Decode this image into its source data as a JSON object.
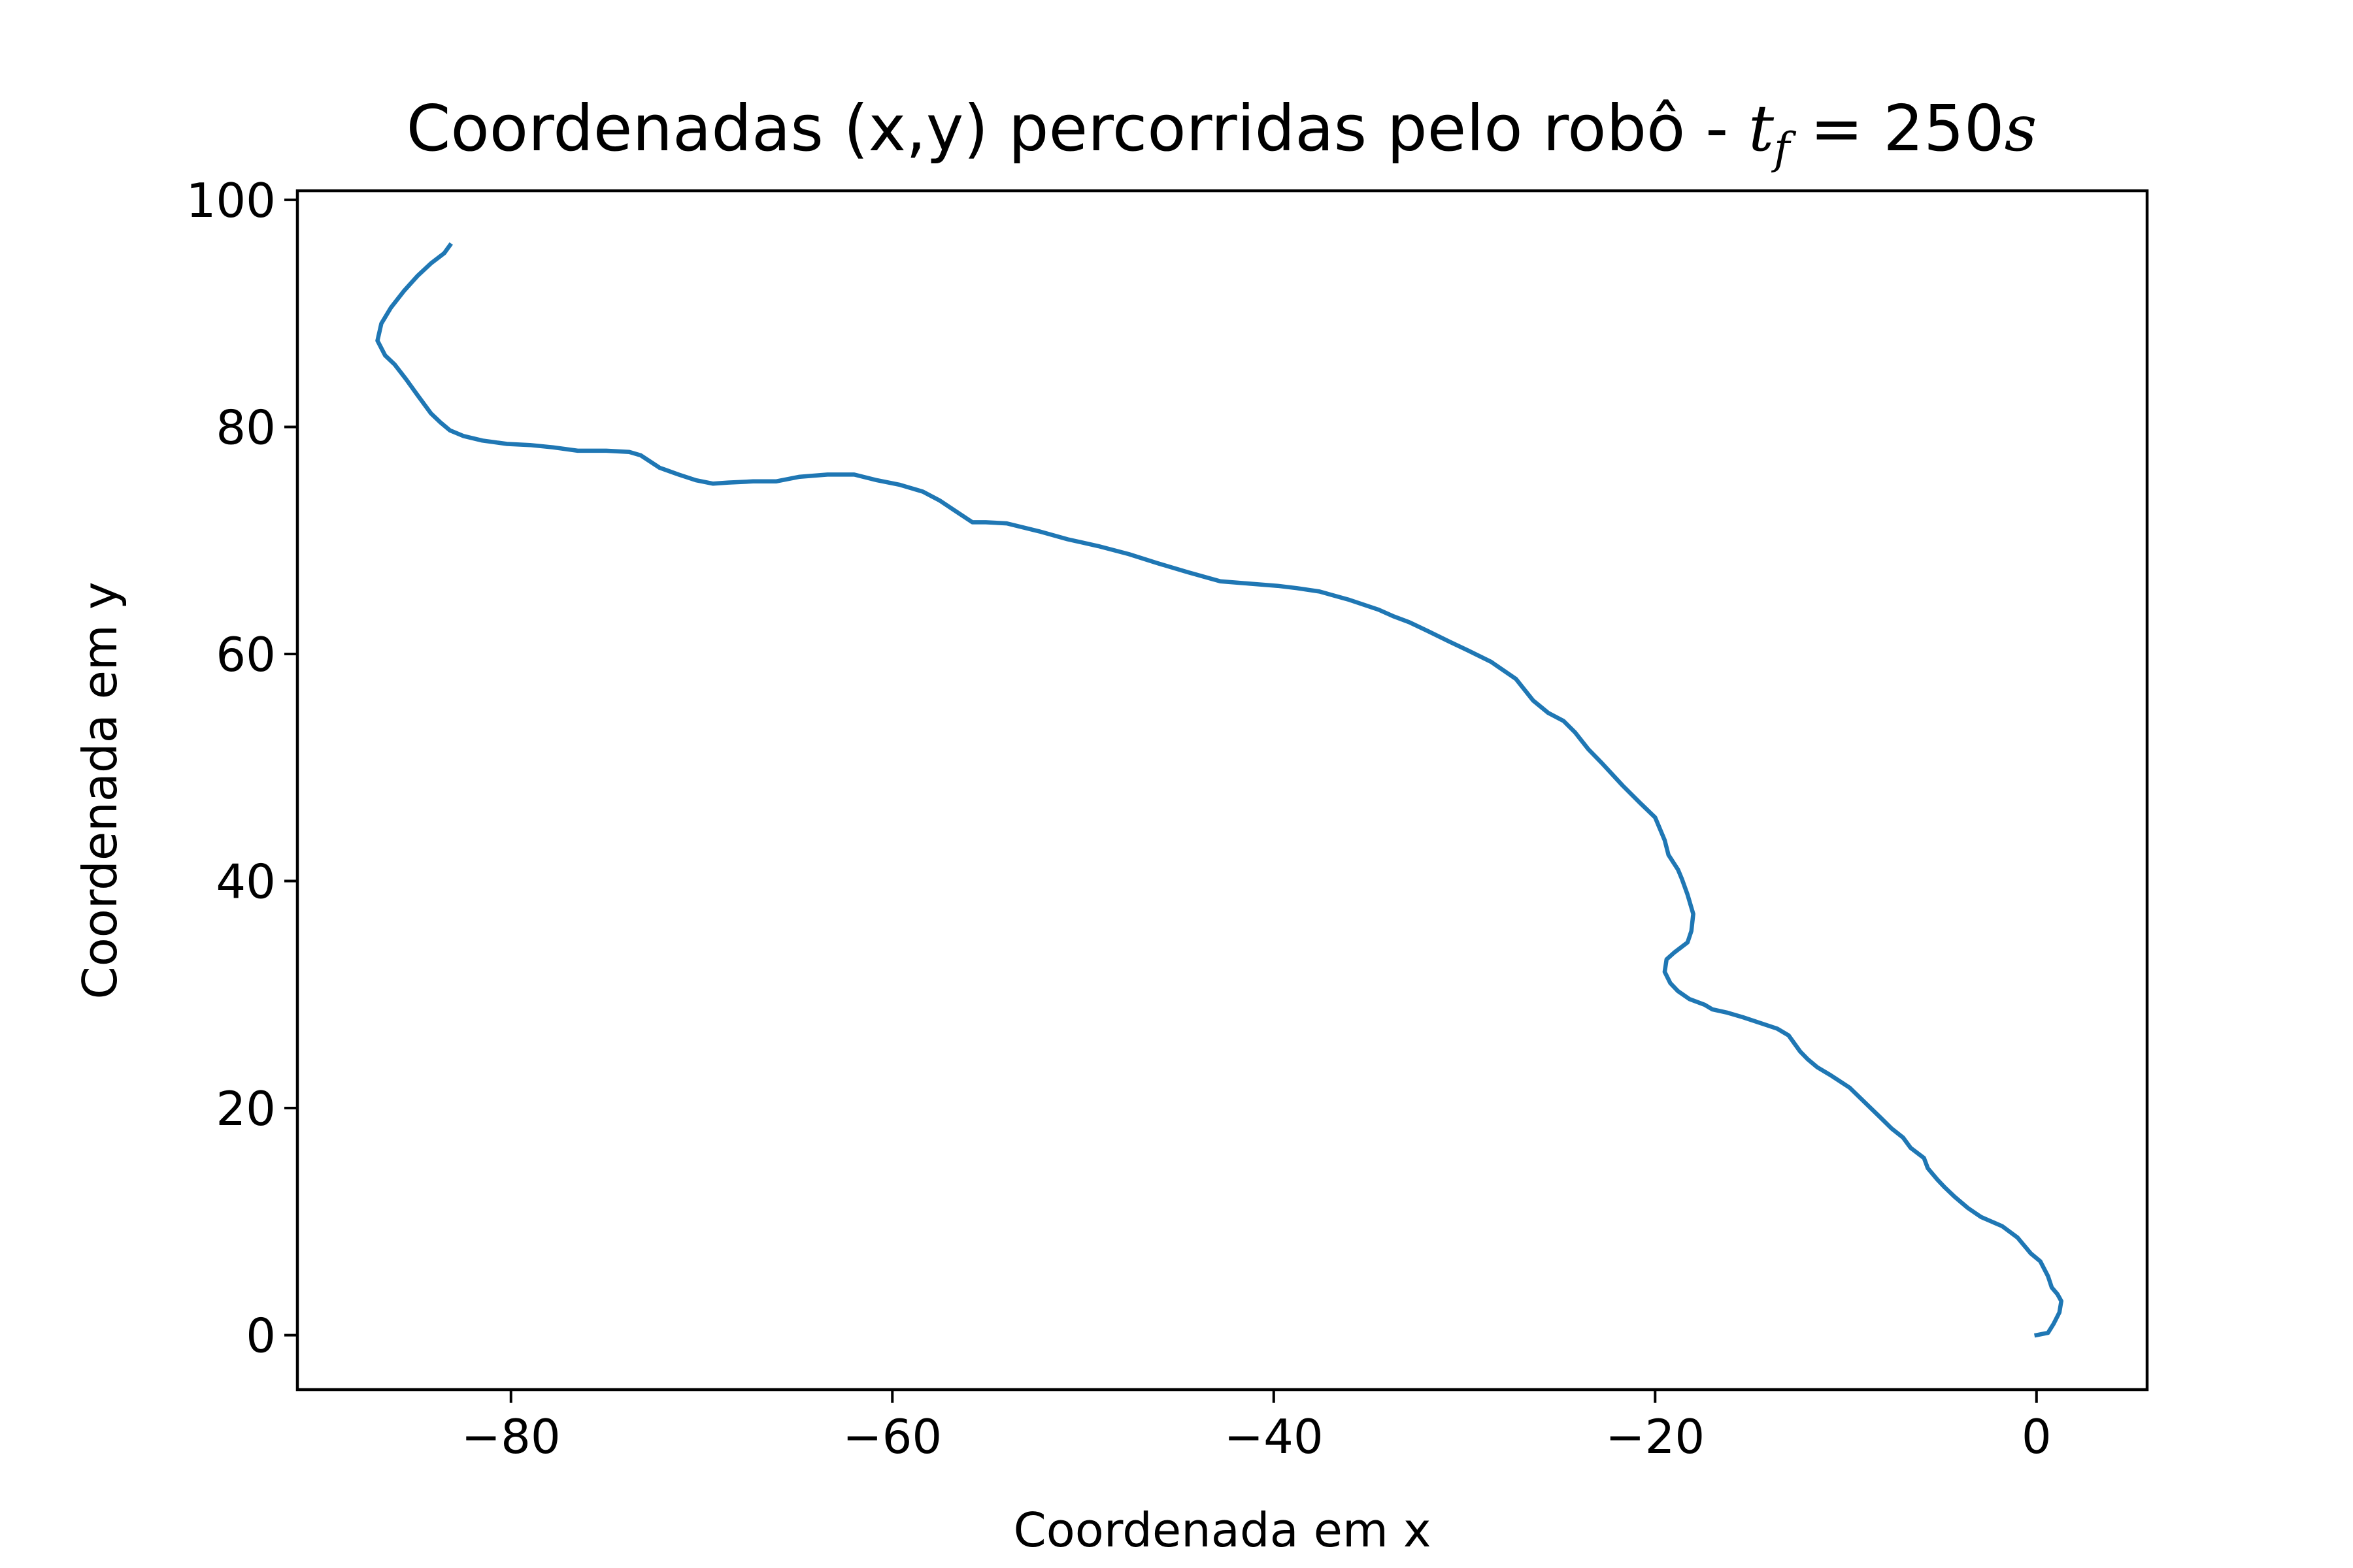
{
  "chart_data": {
    "type": "line",
    "title": "Coordenadas (x,y) percorridas pelo robô - ",
    "title_math": {
      "var": "t",
      "sub": "f",
      "eq": " = 250",
      "unit": "s"
    },
    "xlabel": "Coordenada em x",
    "ylabel": "Coordenada em y",
    "xlim": [
      -91.2,
      5.8
    ],
    "ylim": [
      -4.8,
      100.8
    ],
    "xticks": [
      -80,
      -60,
      -40,
      -20,
      0
    ],
    "xtick_labels": [
      "−80",
      "−60",
      "−40",
      "−20",
      "0"
    ],
    "yticks": [
      0,
      20,
      40,
      60,
      80,
      100
    ],
    "ytick_labels": [
      "0",
      "20",
      "40",
      "60",
      "80",
      "100"
    ],
    "grid": false,
    "line_color": "#1f77b4",
    "series": [
      {
        "x": [
          0.0,
          0.6,
          0.9,
          1.2,
          1.3,
          1.1,
          0.8,
          0.6,
          0.2,
          -0.3,
          -0.6,
          -1.0,
          -1.8,
          -2.9,
          -3.6,
          -4.3,
          -4.8,
          -5.2,
          -5.7,
          -5.9,
          -6.6,
          -7.0,
          -7.6,
          -8.2,
          -9.0,
          -9.8,
          -10.8,
          -11.5,
          -12.0,
          -12.4,
          -13.0,
          -13.6,
          -14.5,
          -15.4,
          -16.2,
          -17.0,
          -17.4,
          -18.2,
          -18.8,
          -19.2,
          -19.5,
          -19.4,
          -19.0,
          -18.3,
          -18.1,
          -18.0,
          -18.3,
          -18.6,
          -18.8,
          -19.3,
          -19.5,
          -20.0,
          -20.8,
          -21.7,
          -22.8,
          -23.5,
          -24.2,
          -24.8,
          -25.6,
          -26.4,
          -27.3,
          -28.6,
          -29.8,
          -30.8,
          -31.9,
          -32.9,
          -33.7,
          -34.5,
          -36.1,
          -37.6,
          -38.8,
          -39.8,
          -41.3,
          -42.8,
          -44.5,
          -46.1,
          -47.6,
          -49.2,
          -50.8,
          -52.3,
          -54.0,
          -55.1,
          -55.8,
          -56.7,
          -57.5,
          -58.4,
          -59.6,
          -60.8,
          -62.0,
          -63.4,
          -64.9,
          -66.1,
          -67.3,
          -68.6,
          -69.4,
          -70.3,
          -71.2,
          -72.2,
          -73.2,
          -73.8,
          -75.0,
          -76.5,
          -77.8,
          -79.0,
          -80.2,
          -81.5,
          -82.5,
          -83.2,
          -83.7,
          -84.2,
          -84.9,
          -85.5,
          -86.1,
          -86.6,
          -87.0,
          -86.8,
          -86.3,
          -85.6,
          -84.9,
          -84.2,
          -83.5,
          -83.2
        ],
        "y": [
          0.0,
          0.2,
          1.0,
          2.0,
          3.0,
          3.6,
          4.2,
          5.2,
          6.5,
          7.2,
          7.8,
          8.6,
          9.6,
          10.4,
          11.2,
          12.2,
          13.0,
          13.7,
          14.7,
          15.6,
          16.5,
          17.4,
          18.2,
          19.2,
          20.5,
          21.8,
          22.9,
          23.6,
          24.3,
          25.0,
          26.4,
          27.0,
          27.5,
          28.0,
          28.4,
          28.7,
          29.1,
          29.6,
          30.3,
          31.0,
          32.0,
          33.1,
          33.7,
          34.6,
          35.6,
          37.1,
          38.8,
          40.2,
          41.0,
          42.3,
          43.6,
          45.6,
          46.9,
          48.4,
          50.4,
          51.6,
          53.1,
          54.1,
          54.8,
          55.9,
          57.8,
          59.3,
          60.3,
          61.1,
          62.0,
          62.8,
          63.3,
          63.9,
          64.8,
          65.5,
          65.8,
          66.0,
          66.2,
          66.4,
          67.2,
          68.0,
          68.8,
          69.5,
          70.1,
          70.8,
          71.5,
          71.6,
          71.6,
          72.6,
          73.5,
          74.3,
          74.9,
          75.3,
          75.8,
          75.8,
          75.6,
          75.2,
          75.2,
          75.1,
          75.0,
          75.3,
          75.8,
          76.4,
          77.5,
          77.8,
          77.9,
          77.9,
          78.2,
          78.4,
          78.5,
          78.8,
          79.2,
          79.7,
          80.4,
          81.2,
          82.8,
          84.2,
          85.5,
          86.3,
          87.6,
          89.1,
          90.5,
          92.0,
          93.3,
          94.4,
          95.3,
          96.0
        ]
      }
    ]
  }
}
